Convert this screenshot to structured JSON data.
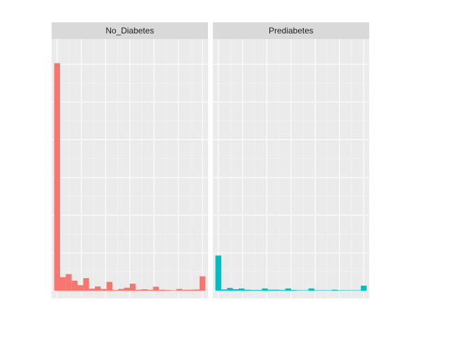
{
  "chart_data": {
    "type": "bar",
    "subtype": "histogram",
    "facets": [
      {
        "label": "No_Diabetes",
        "bar_color": "#F8766D",
        "values": [
          4520,
          270,
          330,
          200,
          110,
          250,
          40,
          85,
          35,
          175,
          15,
          35,
          60,
          140,
          20,
          30,
          20,
          80,
          20,
          15,
          10,
          35,
          20,
          20,
          25,
          285
        ]
      },
      {
        "label": "Prediabetes",
        "bar_color": "#00BFC4",
        "values": [
          700,
          25,
          55,
          30,
          45,
          20,
          15,
          15,
          45,
          20,
          20,
          15,
          45,
          15,
          10,
          10,
          45,
          10,
          10,
          10,
          20,
          10,
          10,
          10,
          10,
          100
        ]
      }
    ],
    "ylim": [
      -150,
      5000
    ],
    "y_gridlines": [
      0,
      750,
      1500,
      2250,
      3000,
      3750,
      4500
    ],
    "xlim": [
      -0.45,
      12.45
    ],
    "x_gridlines": [
      0,
      2,
      4,
      6,
      8,
      10,
      12
    ],
    "bin_count": 26,
    "xlabel": "",
    "ylabel": "",
    "title": "",
    "legend": "none",
    "grid": true,
    "panel_background": "#EBEBEB",
    "strip_background": "#D9D9D9",
    "gridline_color": "#FFFFFF"
  }
}
